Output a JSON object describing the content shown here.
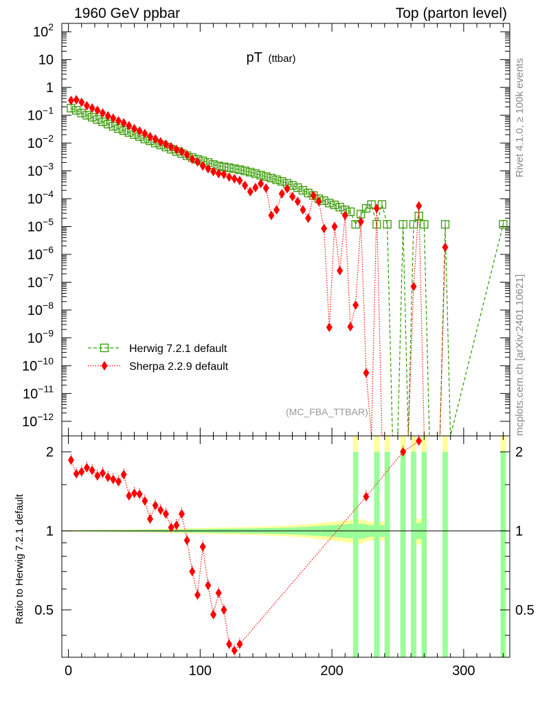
{
  "header": {
    "left": "1960 GeV ppbar",
    "right": "Top (parton level)"
  },
  "side": {
    "rivet": "Rivet 4.1.0, ≥ 100k events",
    "mcplots": "mcplots.cern.ch [arXiv:2401.10621]"
  },
  "colors": {
    "herwig": "#339900",
    "sherpa": "#ff0000",
    "band_yellow": "#ffff99",
    "band_green": "#99ff99"
  },
  "chart_data": [
    {
      "type": "scatter",
      "title": "pT",
      "title_sub": "(ttbar)",
      "watermark": "(MC_FBA_TTBAR)",
      "xlabel": "",
      "ylabel": "",
      "yscale": "log",
      "ylim": [
        3e-13,
        200
      ],
      "xlim": [
        -5,
        335
      ],
      "ytick_labels": [
        "10^-12",
        "10^-11",
        "10^-10",
        "10^-9",
        "10^-8",
        "10^-7",
        "10^-6",
        "10^-5",
        "10^-4",
        "10^-3",
        "10^-2",
        "10^-1",
        "1",
        "10",
        "10^2"
      ],
      "legend": [
        {
          "name": "Herwig 7.2.1 default",
          "marker": "open-square",
          "line": "dashed"
        },
        {
          "name": "Sherpa 2.2.9 default",
          "marker": "diamond",
          "line": "dotted"
        }
      ],
      "series": [
        {
          "name": "Herwig 7.2.1 default",
          "x": [
            2,
            6,
            10,
            14,
            18,
            22,
            26,
            30,
            34,
            38,
            42,
            46,
            50,
            54,
            58,
            62,
            66,
            70,
            74,
            78,
            82,
            86,
            90,
            94,
            98,
            102,
            106,
            110,
            114,
            118,
            122,
            126,
            130,
            134,
            138,
            142,
            146,
            150,
            154,
            158,
            162,
            166,
            170,
            174,
            178,
            182,
            186,
            190,
            194,
            198,
            202,
            206,
            210,
            214,
            218,
            222,
            226,
            230,
            234,
            238,
            242,
            246,
            250,
            254,
            258,
            262,
            266,
            270,
            274,
            278,
            282,
            286,
            290,
            330
          ],
          "values": [
            0.18,
            0.15,
            0.12,
            0.1,
            0.085,
            0.07,
            0.058,
            0.048,
            0.04,
            0.033,
            0.028,
            0.024,
            0.02,
            0.017,
            0.014,
            0.012,
            0.01,
            0.0085,
            0.0072,
            0.006,
            0.005,
            0.0042,
            0.0035,
            0.003,
            0.0026,
            0.0023,
            0.002,
            0.0017,
            0.0015,
            0.0014,
            0.0013,
            0.0012,
            0.0011,
            0.001,
            0.0009,
            0.0008,
            0.0007,
            0.00062,
            0.00055,
            0.00048,
            0.00042,
            0.00036,
            0.0003,
            0.00025,
            0.0002,
            0.00016,
            0.00013,
            0.0001,
            8.5e-05,
            7e-05,
            6e-05,
            5e-05,
            4e-05,
            3.4e-05,
            1.2e-05,
            2.8e-05,
            4.5e-05,
            6.2e-05,
            1.2e-05,
            6.2e-05,
            1.2e-05,
            null,
            null,
            1.2e-05,
            null,
            1.2e-05,
            2.4e-05,
            1.2e-05,
            null,
            null,
            null,
            1.2e-05,
            null,
            1.2e-05
          ]
        },
        {
          "name": "Sherpa 2.2.9 default",
          "x": [
            2,
            6,
            10,
            14,
            18,
            22,
            26,
            30,
            34,
            38,
            42,
            46,
            50,
            54,
            58,
            62,
            66,
            70,
            74,
            78,
            82,
            86,
            90,
            94,
            98,
            102,
            106,
            110,
            114,
            118,
            122,
            126,
            130,
            134,
            138,
            142,
            146,
            150,
            154,
            158,
            162,
            166,
            170,
            174,
            178,
            182,
            186,
            190,
            194,
            198,
            202,
            206,
            210,
            214,
            218,
            222,
            226,
            230,
            234,
            238,
            242,
            246,
            250,
            254,
            258,
            262,
            266,
            270,
            274,
            278,
            282,
            286
          ],
          "values": [
            0.34,
            0.36,
            0.29,
            0.22,
            0.18,
            0.15,
            0.12,
            0.095,
            0.078,
            0.063,
            0.053,
            0.042,
            0.033,
            0.027,
            0.022,
            0.017,
            0.014,
            0.011,
            0.0091,
            0.0073,
            0.0059,
            0.005,
            0.0038,
            0.0026,
            0.0021,
            0.0015,
            0.0012,
            0.00095,
            0.0008,
            0.00075,
            0.0006,
            0.00052,
            0.00045,
            0.0003,
            0.00018,
            0.00025,
            0.00035,
            0.00024,
            2.5e-05,
            4e-05,
            0.00015,
            0.00023,
            0.00012,
            8e-05,
            4e-05,
            2e-05,
            0.00013,
            8e-05,
            8.5e-06,
            2.4e-09,
            1e-05,
            2.6e-07,
            2.5e-05,
            2.5e-09,
            1.5e-08,
            1.5e-05,
            5.5e-11,
            null,
            4.5e-05,
            null,
            null,
            null,
            null,
            null,
            null,
            7e-08,
            5.5e-05,
            null,
            null,
            null,
            null,
            1.8e-06
          ]
        }
      ]
    },
    {
      "type": "scatter",
      "title": "",
      "xlabel": "",
      "ylabel": "Ratio to Herwig 7.2.1 default",
      "ylim": [
        0.33,
        2.3
      ],
      "xlim": [
        -5,
        335
      ],
      "ytick_labels": [
        "0.5",
        "1",
        "2"
      ],
      "xtick_labels": [
        "0",
        "100",
        "200",
        "300"
      ],
      "reference_line": 1,
      "bands": [
        {
          "name": "stat",
          "color_name": "green"
        },
        {
          "name": "syst",
          "color_name": "yellow"
        }
      ],
      "series": [
        {
          "name": "Sherpa 2.2.9 default",
          "x": [
            2,
            6,
            10,
            14,
            18,
            22,
            26,
            30,
            34,
            38,
            42,
            46,
            50,
            54,
            58,
            62,
            66,
            70,
            74,
            78,
            82,
            86,
            90,
            94,
            98,
            102,
            106,
            110,
            114,
            118,
            122,
            126,
            130,
            226,
            254,
            266
          ],
          "values": [
            1.86,
            1.65,
            1.68,
            1.74,
            1.7,
            1.62,
            1.66,
            1.6,
            1.57,
            1.54,
            1.64,
            1.36,
            1.39,
            1.38,
            1.3,
            1.11,
            1.25,
            1.2,
            1.16,
            1.03,
            1.05,
            1.16,
            0.92,
            0.7,
            0.57,
            0.87,
            0.62,
            0.48,
            0.58,
            0.5,
            0.37,
            0.35,
            0.37,
            1.35,
            2.0,
            2.2
          ]
        }
      ]
    }
  ]
}
